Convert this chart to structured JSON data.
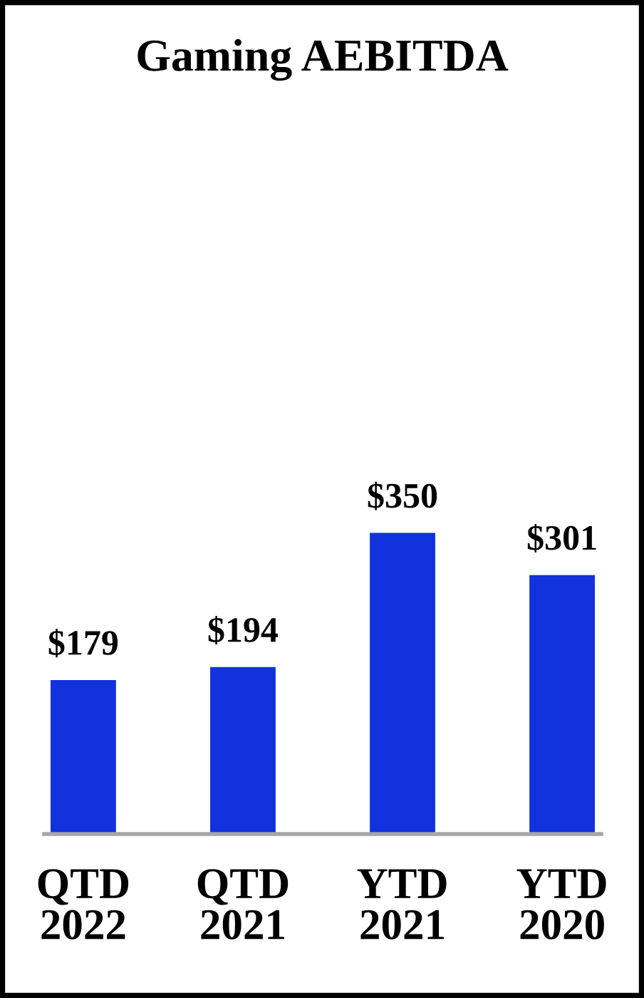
{
  "chart_data": {
    "type": "bar",
    "title": "Gaming AEBITDA",
    "categories": [
      "QTD\n2022",
      "QTD\n2021",
      "YTD\n2021",
      "YTD\n2020"
    ],
    "values": [
      179,
      194,
      350,
      301
    ],
    "value_labels": [
      "$179",
      "$194",
      "$350",
      "$301"
    ],
    "color": "#1232dd",
    "tick_labels": "x",
    "grid": false,
    "legend": false
  }
}
